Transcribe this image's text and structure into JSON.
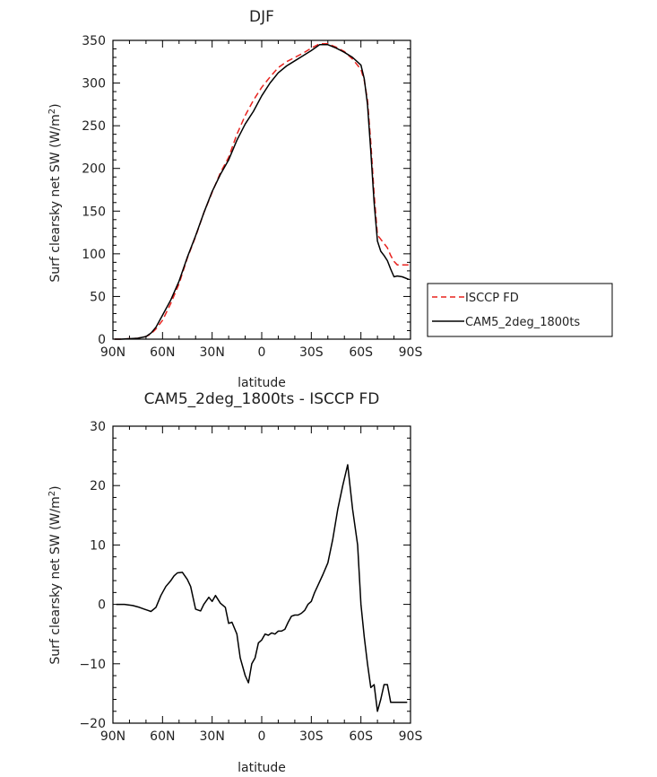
{
  "page": {
    "background": "#ffffff"
  },
  "chart_data": [
    {
      "type": "line",
      "title": "DJF",
      "xlabel": "latitude",
      "ylabel_main": "Surf clearsky net SW (W/m",
      "ylabel_sup": "2",
      "ylabel_close": ")",
      "xlim": [
        90,
        -90
      ],
      "ylim": [
        0,
        350
      ],
      "xticks": [
        90,
        60,
        30,
        0,
        -30,
        -60,
        -90
      ],
      "xtick_labels": [
        "90N",
        "60N",
        "30N",
        "0",
        "30S",
        "60S",
        "90S"
      ],
      "yticks": [
        0,
        50,
        100,
        150,
        200,
        250,
        300,
        350
      ],
      "ytick_labels": [
        "0",
        "50",
        "100",
        "150",
        "200",
        "250",
        "300",
        "350"
      ],
      "legend_position": "right-outside",
      "series": [
        {
          "name": "ISCCP FD",
          "color": "#e8231f",
          "dash": "dashed",
          "x": [
            89,
            85,
            80,
            75,
            70,
            67,
            64,
            60,
            55,
            50,
            45,
            40,
            35,
            30,
            25,
            20,
            15,
            10,
            5,
            0,
            -5,
            -10,
            -15,
            -20,
            -25,
            -30,
            -35,
            -40,
            -45,
            -50,
            -55,
            -60,
            -62,
            -64,
            -66,
            -68,
            -70,
            -72,
            -74,
            -76,
            -78,
            -80,
            -82,
            -85,
            -89
          ],
          "y": [
            0,
            0,
            0.5,
            1,
            3,
            6,
            12,
            22,
            42,
            65,
            95,
            120,
            148,
            172,
            195,
            213,
            240,
            262,
            280,
            295,
            307,
            318,
            325,
            330,
            335,
            341,
            346,
            346,
            342,
            337,
            328,
            316,
            303,
            280,
            230,
            170,
            122,
            117,
            112,
            107,
            98,
            91,
            87,
            87,
            87
          ]
        },
        {
          "name": "CAM5_2deg_1800ts",
          "color": "#000000",
          "dash": "solid",
          "x": [
            89,
            85,
            80,
            75,
            70,
            67,
            64,
            60,
            55,
            50,
            45,
            40,
            35,
            30,
            25,
            20,
            15,
            10,
            5,
            0,
            -5,
            -10,
            -15,
            -20,
            -25,
            -30,
            -35,
            -40,
            -45,
            -50,
            -55,
            -60,
            -62,
            -64,
            -66,
            -68,
            -70,
            -72,
            -74,
            -76,
            -78,
            -80,
            -82,
            -85,
            -89
          ],
          "y": [
            0,
            0,
            0.5,
            1,
            3,
            7,
            14,
            28,
            46,
            68,
            96,
            121,
            148,
            173,
            193,
            210,
            233,
            252,
            267,
            285,
            300,
            312,
            320,
            326,
            332,
            338,
            345,
            345,
            341,
            336,
            330,
            321,
            305,
            275,
            220,
            160,
            115,
            103,
            98,
            92,
            82,
            73,
            74,
            73,
            70
          ]
        }
      ]
    },
    {
      "type": "line",
      "title": "CAM5_2deg_1800ts - ISCCP FD",
      "xlabel": "latitude",
      "ylabel_main": "Surf clearsky net SW (W/m",
      "ylabel_sup": "2",
      "ylabel_close": ")",
      "xlim": [
        90,
        -90
      ],
      "ylim": [
        -20,
        30
      ],
      "xticks": [
        90,
        60,
        30,
        0,
        -30,
        -60,
        -90
      ],
      "xtick_labels": [
        "90N",
        "60N",
        "30N",
        "0",
        "30S",
        "60S",
        "90S"
      ],
      "yticks": [
        -20,
        -10,
        0,
        10,
        20,
        30
      ],
      "ytick_labels": [
        "−20",
        "−10",
        "0",
        "10",
        "20",
        "30"
      ],
      "series": [
        {
          "color": "#000000",
          "dash": "solid",
          "x": [
            88,
            83,
            78,
            74,
            71,
            69,
            67,
            64,
            61,
            58,
            55,
            53,
            51,
            48,
            45,
            43,
            40,
            37,
            35,
            32,
            30,
            28,
            25,
            22,
            20,
            18,
            15,
            13,
            10,
            8,
            6,
            4,
            2,
            0,
            -2,
            -4,
            -6,
            -8,
            -10,
            -12,
            -14,
            -16,
            -18,
            -20,
            -22,
            -24,
            -26,
            -28,
            -30,
            -32,
            -34,
            -37,
            -40,
            -43,
            -46,
            -49,
            -52,
            -55,
            -58,
            -60,
            -62,
            -64,
            -66,
            -68,
            -70,
            -72,
            -74,
            -76,
            -78,
            -80,
            -82,
            -84,
            -86,
            -88
          ],
          "y": [
            0,
            0,
            -0.2,
            -0.5,
            -0.8,
            -1,
            -1.2,
            -0.5,
            1.5,
            3,
            4,
            4.8,
            5.3,
            5.4,
            4.2,
            3,
            -0.8,
            -1.1,
            0,
            1.2,
            0.5,
            1.5,
            0.2,
            -0.5,
            -3.2,
            -3,
            -5,
            -9,
            -12,
            -13.2,
            -10,
            -9,
            -6.5,
            -6,
            -5,
            -5.2,
            -4.8,
            -5,
            -4.5,
            -4.5,
            -4.2,
            -3,
            -2,
            -1.8,
            -1.8,
            -1.5,
            -1,
            0,
            0.5,
            2,
            3.2,
            5,
            7,
            11,
            16,
            20,
            23.5,
            16,
            10,
            0,
            -5.5,
            -10,
            -14,
            -13.5,
            -18,
            -16,
            -13.5,
            -13.5,
            -16.5,
            -16.5,
            -16.5,
            -16.5,
            -16.5,
            -16.5
          ]
        }
      ]
    }
  ]
}
